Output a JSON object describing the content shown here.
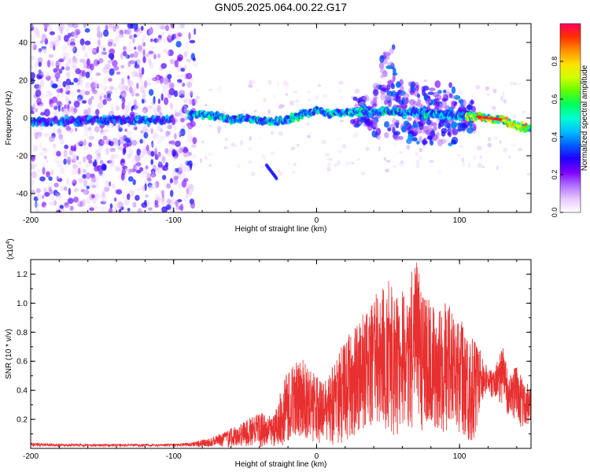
{
  "figure_title": "GN05.2025.064.00.22.G17",
  "chart_data": [
    {
      "type": "heatmap",
      "title": "GN05.2025.064.00.22.G17",
      "xlabel": "Height of straight line (km)",
      "ylabel": "Frequency (Hz)",
      "xlim": [
        -200,
        150
      ],
      "ylim": [
        -50,
        50
      ],
      "x_ticks": [
        -200,
        -100,
        0,
        100
      ],
      "y_ticks": [
        -40,
        -20,
        0,
        20,
        40
      ],
      "grid": false,
      "colorbar": {
        "label": "Normalized spectral amplitude",
        "range": [
          0,
          1
        ],
        "ticks": [
          "0.0",
          "0.2",
          "0.4",
          "0.6",
          "0.8"
        ],
        "colors": [
          "#ffffff",
          "#e8c8ff",
          "#b070ff",
          "#7a00ff",
          "#2000ff",
          "#0060ff",
          "#00c0ff",
          "#00ffd0",
          "#00ff60",
          "#60ff00",
          "#d0ff00",
          "#ffe000",
          "#ff9000",
          "#ff3000",
          "#ff0060"
        ]
      },
      "ridge": {
        "x": [
          -200,
          -180,
          -160,
          -140,
          -120,
          -100,
          -85,
          -70,
          -60,
          -50,
          -40,
          -30,
          -20,
          -10,
          0,
          10,
          20,
          30,
          40,
          50,
          60,
          70,
          80,
          90,
          100,
          110,
          120,
          130,
          140,
          150
        ],
        "y": [
          -2,
          -2,
          -1,
          -1,
          -1,
          -1,
          2,
          1,
          -1,
          0,
          -1,
          -2,
          -1,
          2,
          4,
          2,
          3,
          3,
          3,
          4,
          3,
          3,
          2,
          2,
          1,
          1,
          0,
          -1,
          -4,
          -6
        ]
      },
      "features": [
        {
          "x": [
            -35,
            -28
          ],
          "y": [
            -25,
            -32
          ]
        }
      ]
    },
    {
      "type": "line",
      "xlabel": "Height of straight line (km)",
      "ylabel": "SNR (10 * v/v)",
      "y_scale_label": "(x10",
      "y_scale_exponent": "4",
      "y_scale_suffix": ")",
      "xlim": [
        -200,
        150
      ],
      "ylim": [
        0,
        1.3
      ],
      "x_ticks": [
        -200,
        -100,
        0,
        100
      ],
      "y_ticks": [
        0.2,
        0.4,
        0.6,
        0.8,
        1.0,
        1.2
      ],
      "y_tick_labels": [
        "0.2",
        "0.4",
        "0.6",
        "0.8",
        "1.0",
        "1.2"
      ],
      "grid": false,
      "series": [
        {
          "color": "#e83030",
          "envelope": {
            "x": [
              -200,
              -180,
              -160,
              -140,
              -120,
              -100,
              -90,
              -80,
              -75,
              -70,
              -65,
              -60,
              -55,
              -50,
              -45,
              -40,
              -35,
              -30,
              -25,
              -20,
              -15,
              -10,
              -5,
              0,
              5,
              10,
              15,
              20,
              25,
              30,
              35,
              40,
              45,
              50,
              55,
              60,
              65,
              70,
              75,
              80,
              85,
              90,
              95,
              100,
              105,
              110,
              115,
              120,
              125,
              130,
              135,
              140,
              145,
              150
            ],
            "low": [
              0.01,
              0.01,
              0.01,
              0.01,
              0.01,
              0.01,
              0.01,
              0.01,
              0.01,
              0.01,
              0.01,
              0.01,
              0.01,
              0.01,
              0.01,
              0.01,
              0.01,
              0.01,
              0.02,
              0.02,
              0.05,
              0.1,
              0.05,
              0.04,
              0.03,
              0.02,
              0.02,
              0.05,
              0.08,
              0.1,
              0.12,
              0.15,
              0.15,
              0.1,
              0.08,
              0.1,
              0.12,
              0.1,
              0.12,
              0.15,
              0.1,
              0.1,
              0.1,
              0.08,
              0.05,
              0.05,
              0.3,
              0.4,
              0.3,
              0.3,
              0.2,
              0.2,
              0.1,
              0.2
            ],
            "high": [
              0.04,
              0.03,
              0.03,
              0.03,
              0.03,
              0.03,
              0.04,
              0.06,
              0.07,
              0.09,
              0.11,
              0.14,
              0.16,
              0.19,
              0.22,
              0.25,
              0.23,
              0.24,
              0.4,
              0.55,
              0.6,
              0.62,
              0.55,
              0.5,
              0.45,
              0.55,
              0.65,
              0.75,
              0.85,
              0.9,
              0.95,
              1.05,
              1.1,
              1.18,
              1.05,
              1.1,
              1.2,
              1.28,
              1.1,
              1.0,
              0.95,
              1.0,
              1.05,
              0.92,
              0.8,
              0.75,
              0.68,
              0.55,
              0.55,
              0.73,
              0.5,
              0.58,
              0.45,
              0.45
            ]
          }
        }
      ]
    }
  ]
}
